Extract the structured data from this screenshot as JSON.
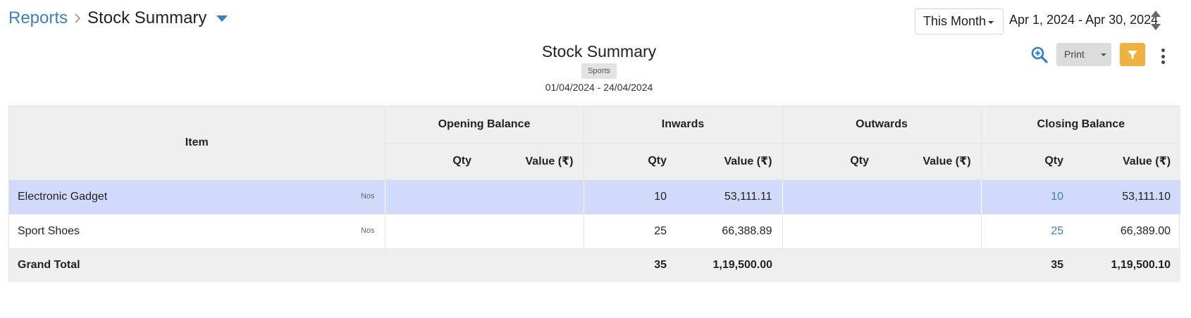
{
  "breadcrumb": {
    "parent": "Reports",
    "current": "Stock Summary"
  },
  "period": {
    "selected": "This Month",
    "range": "Apr 1, 2024 - Apr 30, 2024"
  },
  "report": {
    "title": "Stock Summary",
    "tag": "Sports",
    "dates": "01/04/2024 - 24/04/2024"
  },
  "toolbar": {
    "print_label": "Print",
    "icons": [
      "zoom-in-icon",
      "filter-icon",
      "more-vertical-icon"
    ],
    "filter_color": "#efb142"
  },
  "table": {
    "item_header": "Item",
    "groups": [
      "Opening Balance",
      "Inwards",
      "Outwards",
      "Closing Balance"
    ],
    "sub_headers": {
      "qty": "Qty",
      "value": "Value (₹)"
    },
    "rows": [
      {
        "item": "Electronic Gadget",
        "unit": "Nos",
        "opening_qty": "",
        "opening_value": "",
        "in_qty": "10",
        "in_value": "53,111.11",
        "out_qty": "",
        "out_value": "",
        "close_qty": "10",
        "close_value": "53,111.10"
      },
      {
        "item": "Sport Shoes",
        "unit": "Nos",
        "opening_qty": "",
        "opening_value": "",
        "in_qty": "25",
        "in_value": "66,388.89",
        "out_qty": "",
        "out_value": "",
        "close_qty": "25",
        "close_value": "66,389.00"
      }
    ],
    "total": {
      "label": "Grand Total",
      "in_qty": "35",
      "in_value": "1,19,500.00",
      "close_qty": "35",
      "close_value": "1,19,500.10"
    }
  },
  "colors": {
    "accent": "#3b80c4",
    "selected_row": "#d2dafb",
    "header_bg": "#efefef"
  }
}
